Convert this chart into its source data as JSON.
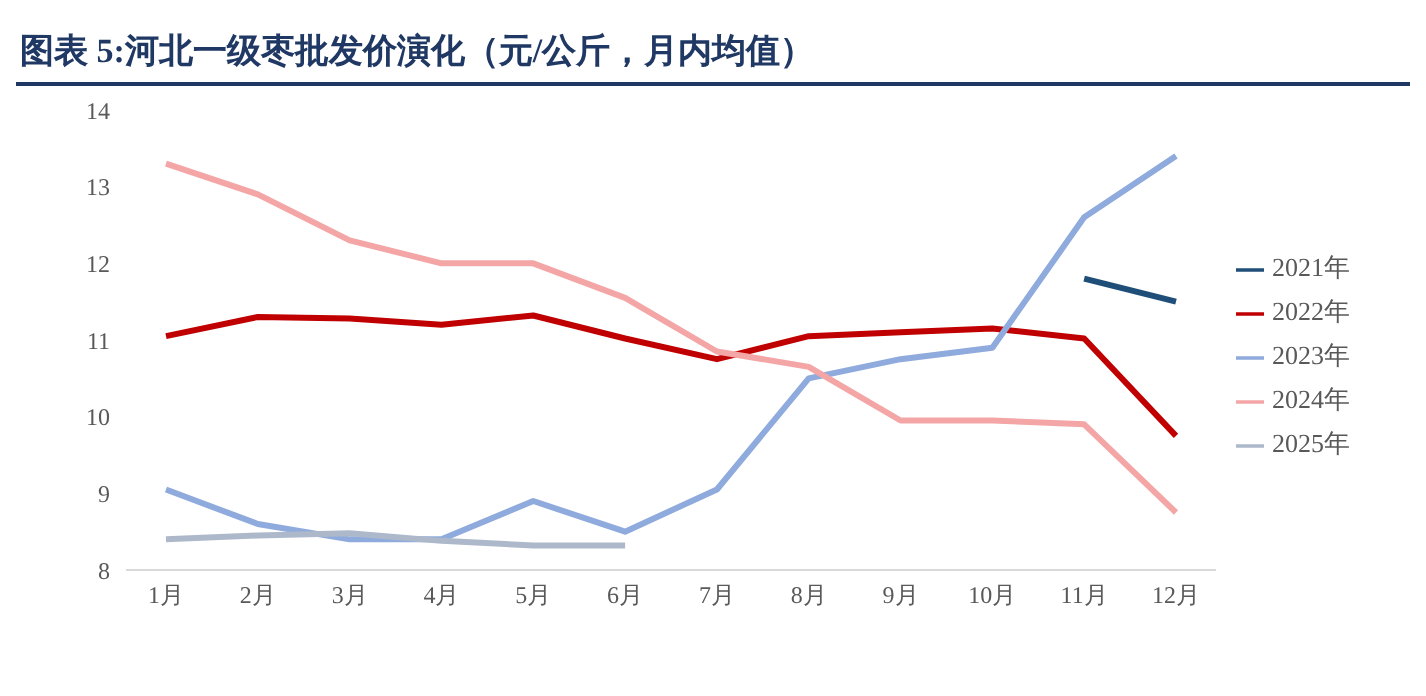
{
  "chart_data": {
    "type": "line",
    "title": "图表 5:河北一级枣批发价演化（元/公斤，月内均值）",
    "categories": [
      "1月",
      "2月",
      "3月",
      "4月",
      "5月",
      "6月",
      "7月",
      "8月",
      "9月",
      "10月",
      "11月",
      "12月"
    ],
    "series": [
      {
        "name": "2021年",
        "color": "#1f4e79",
        "values": [
          null,
          null,
          null,
          null,
          null,
          null,
          null,
          null,
          null,
          null,
          11.8,
          11.5
        ]
      },
      {
        "name": "2022年",
        "color": "#c00000",
        "values": [
          11.05,
          11.3,
          11.28,
          11.2,
          11.32,
          11.02,
          10.75,
          11.05,
          11.1,
          11.15,
          11.02,
          9.75
        ]
      },
      {
        "name": "2023年",
        "color": "#8faadc",
        "values": [
          9.05,
          8.6,
          8.4,
          8.4,
          8.9,
          8.5,
          9.05,
          10.5,
          10.75,
          10.9,
          12.6,
          13.4
        ]
      },
      {
        "name": "2024年",
        "color": "#f4a6a6",
        "values": [
          13.3,
          12.9,
          12.3,
          12.0,
          12.0,
          11.55,
          10.85,
          10.65,
          9.95,
          9.95,
          9.9,
          8.75
        ]
      },
      {
        "name": "2025年",
        "color": "#adb9ca",
        "values": [
          8.4,
          8.45,
          8.48,
          8.38,
          8.32,
          8.32,
          null,
          null,
          null,
          null,
          null,
          null
        ]
      }
    ],
    "ylim": [
      8,
      14
    ],
    "yticks": [
      8,
      9,
      10,
      11,
      12,
      13,
      14
    ],
    "grid": false,
    "legend": "right",
    "marker": "none",
    "line_style": "solid"
  }
}
